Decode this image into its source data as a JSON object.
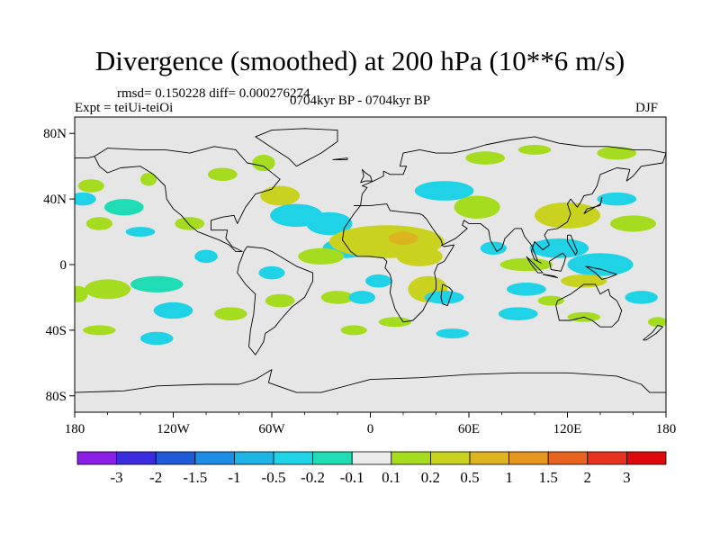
{
  "title": "Divergence (smoothed) at 200 hPa (10**6 m/s)",
  "stats": "rmsd= 0.150228 diff= 0.000276274",
  "experiment": "Expt = teiUi-teiOi",
  "period": "0704kyr BP - 0704kyr BP",
  "season": "DJF",
  "map": {
    "background": "#e6e6e6",
    "lon_range": [
      -180,
      180
    ],
    "lat_range": [
      -90,
      90
    ],
    "lat_ticks": [
      {
        "value": 80,
        "label": "80N"
      },
      {
        "value": 40,
        "label": "40N"
      },
      {
        "value": 0,
        "label": "0"
      },
      {
        "value": -40,
        "label": "40S"
      },
      {
        "value": -80,
        "label": "80S"
      }
    ],
    "lon_ticks": [
      {
        "value": -180,
        "label": "180"
      },
      {
        "value": -120,
        "label": "120W"
      },
      {
        "value": -60,
        "label": "60W"
      },
      {
        "value": 0,
        "label": "0"
      },
      {
        "value": 60,
        "label": "60E"
      },
      {
        "value": 120,
        "label": "120E"
      },
      {
        "value": 180,
        "label": "180"
      }
    ]
  },
  "colorbar": {
    "colors": [
      "#8c1fe6",
      "#3c2ce0",
      "#1f5ad9",
      "#1f8ce6",
      "#1fb4e6",
      "#1fd2e6",
      "#1fdcb4",
      "#ebebeb",
      "#a6dc1f",
      "#c8d21f",
      "#dcb41f",
      "#e6961f",
      "#e6641f",
      "#e6321f",
      "#dc0a0a"
    ],
    "labels": [
      "-3",
      "-2",
      "-1.5",
      "-1",
      "-0.5",
      "-0.2",
      "-0.1",
      "0.1",
      "0.2",
      "0.5",
      "1",
      "1.5",
      "2",
      "3"
    ]
  },
  "fields": [
    {
      "cls": 6,
      "lon": -150,
      "lat": 35,
      "rx": 12,
      "ry": 5
    },
    {
      "cls": 8,
      "lon": -165,
      "lat": 25,
      "rx": 8,
      "ry": 4
    },
    {
      "cls": 8,
      "lon": -170,
      "lat": 48,
      "rx": 8,
      "ry": 4
    },
    {
      "cls": 5,
      "lon": -175,
      "lat": 40,
      "rx": 8,
      "ry": 4
    },
    {
      "cls": 8,
      "lon": -160,
      "lat": -15,
      "rx": 14,
      "ry": 6
    },
    {
      "cls": 6,
      "lon": -130,
      "lat": -12,
      "rx": 16,
      "ry": 5
    },
    {
      "cls": 8,
      "lon": -178,
      "lat": -18,
      "rx": 6,
      "ry": 5
    },
    {
      "cls": 5,
      "lon": -140,
      "lat": 20,
      "rx": 9,
      "ry": 3
    },
    {
      "cls": 8,
      "lon": -110,
      "lat": 25,
      "rx": 9,
      "ry": 4
    },
    {
      "cls": 8,
      "lon": -135,
      "lat": 52,
      "rx": 5,
      "ry": 4
    },
    {
      "cls": 5,
      "lon": -100,
      "lat": 5,
      "rx": 7,
      "ry": 4
    },
    {
      "cls": 5,
      "lon": -120,
      "lat": -28,
      "rx": 12,
      "ry": 5
    },
    {
      "cls": 8,
      "lon": -85,
      "lat": -30,
      "rx": 10,
      "ry": 4
    },
    {
      "cls": 5,
      "lon": -60,
      "lat": -5,
      "rx": 8,
      "ry": 4
    },
    {
      "cls": 8,
      "lon": -90,
      "lat": 55,
      "rx": 9,
      "ry": 4
    },
    {
      "cls": 9,
      "lon": -55,
      "lat": 42,
      "rx": 12,
      "ry": 6
    },
    {
      "cls": 5,
      "lon": -45,
      "lat": 30,
      "rx": 16,
      "ry": 7
    },
    {
      "cls": 8,
      "lon": -65,
      "lat": 62,
      "rx": 7,
      "ry": 5
    },
    {
      "cls": 5,
      "lon": -25,
      "lat": 25,
      "rx": 14,
      "ry": 7
    },
    {
      "cls": 5,
      "lon": -15,
      "lat": 10,
      "rx": 14,
      "ry": 6
    },
    {
      "cls": 8,
      "lon": -30,
      "lat": 5,
      "rx": 14,
      "ry": 5
    },
    {
      "cls": 9,
      "lon": 10,
      "lat": 14,
      "rx": 35,
      "ry": 10
    },
    {
      "cls": 10,
      "lon": 20,
      "lat": 16,
      "rx": 9,
      "ry": 4
    },
    {
      "cls": 8,
      "lon": -20,
      "lat": -20,
      "rx": 10,
      "ry": 4
    },
    {
      "cls": 5,
      "lon": -5,
      "lat": -20,
      "rx": 8,
      "ry": 4
    },
    {
      "cls": 8,
      "lon": -55,
      "lat": -22,
      "rx": 9,
      "ry": 4
    },
    {
      "cls": 5,
      "lon": 5,
      "lat": -10,
      "rx": 8,
      "ry": 4
    },
    {
      "cls": 9,
      "lon": 30,
      "lat": 5,
      "rx": 14,
      "ry": 6
    },
    {
      "cls": 9,
      "lon": 35,
      "lat": -15,
      "rx": 12,
      "ry": 8
    },
    {
      "cls": 5,
      "lon": 45,
      "lat": -20,
      "rx": 12,
      "ry": 4
    },
    {
      "cls": 8,
      "lon": 15,
      "lat": -35,
      "rx": 10,
      "ry": 3
    },
    {
      "cls": 5,
      "lon": 45,
      "lat": 45,
      "rx": 18,
      "ry": 6
    },
    {
      "cls": 8,
      "lon": 70,
      "lat": 65,
      "rx": 12,
      "ry": 4
    },
    {
      "cls": 8,
      "lon": 100,
      "lat": 70,
      "rx": 10,
      "ry": 3
    },
    {
      "cls": 8,
      "lon": 150,
      "lat": 68,
      "rx": 12,
      "ry": 4
    },
    {
      "cls": 8,
      "lon": 65,
      "lat": 35,
      "rx": 14,
      "ry": 7
    },
    {
      "cls": 5,
      "lon": 75,
      "lat": 10,
      "rx": 8,
      "ry": 4
    },
    {
      "cls": 9,
      "lon": 120,
      "lat": 30,
      "rx": 20,
      "ry": 8
    },
    {
      "cls": 8,
      "lon": 160,
      "lat": 25,
      "rx": 14,
      "ry": 5
    },
    {
      "cls": 5,
      "lon": 150,
      "lat": 40,
      "rx": 12,
      "ry": 4
    },
    {
      "cls": 5,
      "lon": 115,
      "lat": 10,
      "rx": 18,
      "ry": 6
    },
    {
      "cls": 5,
      "lon": 140,
      "lat": 0,
      "rx": 20,
      "ry": 7
    },
    {
      "cls": 8,
      "lon": 95,
      "lat": 0,
      "rx": 16,
      "ry": 4
    },
    {
      "cls": 9,
      "lon": 130,
      "lat": -10,
      "rx": 14,
      "ry": 4
    },
    {
      "cls": 5,
      "lon": 95,
      "lat": -15,
      "rx": 12,
      "ry": 4
    },
    {
      "cls": 8,
      "lon": 110,
      "lat": -22,
      "rx": 8,
      "ry": 3
    },
    {
      "cls": 5,
      "lon": 90,
      "lat": -30,
      "rx": 12,
      "ry": 4
    },
    {
      "cls": 8,
      "lon": 130,
      "lat": -32,
      "rx": 10,
      "ry": 3
    },
    {
      "cls": 5,
      "lon": 165,
      "lat": -20,
      "rx": 10,
      "ry": 4
    },
    {
      "cls": 8,
      "lon": 175,
      "lat": -35,
      "rx": 6,
      "ry": 3
    },
    {
      "cls": 5,
      "lon": -130,
      "lat": -45,
      "rx": 10,
      "ry": 4
    },
    {
      "cls": 8,
      "lon": -165,
      "lat": -40,
      "rx": 10,
      "ry": 3
    },
    {
      "cls": 5,
      "lon": 50,
      "lat": -42,
      "rx": 10,
      "ry": 3
    },
    {
      "cls": 8,
      "lon": -10,
      "lat": -40,
      "rx": 8,
      "ry": 3
    }
  ],
  "coastlines": [
    [
      [
        -168,
        66
      ],
      [
        -160,
        71
      ],
      [
        -140,
        70
      ],
      [
        -125,
        70
      ],
      [
        -110,
        68
      ],
      [
        -95,
        72
      ],
      [
        -82,
        70
      ],
      [
        -75,
        62
      ],
      [
        -65,
        60
      ],
      [
        -55,
        52
      ],
      [
        -60,
        46
      ],
      [
        -70,
        43
      ],
      [
        -76,
        35
      ],
      [
        -80,
        27
      ],
      [
        -81,
        25
      ],
      [
        -83,
        30
      ],
      [
        -90,
        29
      ],
      [
        -97,
        27
      ],
      [
        -97,
        21
      ],
      [
        -90,
        21
      ],
      [
        -87,
        21
      ],
      [
        -88,
        16
      ],
      [
        -84,
        11
      ],
      [
        -80,
        9
      ],
      [
        -78,
        8
      ],
      [
        -82,
        8
      ],
      [
        -86,
        12
      ],
      [
        -92,
        15
      ],
      [
        -105,
        20
      ],
      [
        -110,
        24
      ],
      [
        -115,
        30
      ],
      [
        -120,
        34
      ],
      [
        -124,
        40
      ],
      [
        -125,
        48
      ],
      [
        -132,
        55
      ],
      [
        -140,
        60
      ],
      [
        -152,
        59
      ],
      [
        -160,
        56
      ],
      [
        -165,
        60
      ],
      [
        -168,
        66
      ]
    ],
    [
      [
        -75,
        11
      ],
      [
        -65,
        10
      ],
      [
        -60,
        8
      ],
      [
        -50,
        2
      ],
      [
        -45,
        -1
      ],
      [
        -35,
        -5
      ],
      [
        -35,
        -10
      ],
      [
        -40,
        -20
      ],
      [
        -48,
        -26
      ],
      [
        -55,
        -34
      ],
      [
        -58,
        -38
      ],
      [
        -64,
        -42
      ],
      [
        -65,
        -47
      ],
      [
        -68,
        -52
      ],
      [
        -70,
        -55
      ],
      [
        -74,
        -50
      ],
      [
        -73,
        -40
      ],
      [
        -71,
        -30
      ],
      [
        -70,
        -18
      ],
      [
        -76,
        -12
      ],
      [
        -81,
        -5
      ],
      [
        -80,
        0
      ],
      [
        -78,
        5
      ],
      [
        -77,
        8
      ],
      [
        -75,
        11
      ]
    ],
    [
      [
        -45,
        60
      ],
      [
        -30,
        68
      ],
      [
        -20,
        75
      ],
      [
        -20,
        82
      ],
      [
        -40,
        83
      ],
      [
        -60,
        82
      ],
      [
        -70,
        78
      ],
      [
        -58,
        70
      ],
      [
        -50,
        65
      ],
      [
        -45,
        60
      ]
    ],
    [
      [
        -10,
        36
      ],
      [
        -6,
        36
      ],
      [
        -5,
        43
      ],
      [
        -2,
        47
      ],
      [
        -5,
        48
      ],
      [
        2,
        51
      ],
      [
        8,
        54
      ],
      [
        8,
        57
      ],
      [
        12,
        55
      ],
      [
        20,
        55
      ],
      [
        22,
        60
      ],
      [
        18,
        60
      ],
      [
        20,
        68
      ],
      [
        30,
        70
      ],
      [
        40,
        68
      ],
      [
        50,
        68
      ],
      [
        60,
        70
      ],
      [
        70,
        73
      ],
      [
        85,
        76
      ],
      [
        100,
        78
      ],
      [
        115,
        74
      ],
      [
        130,
        72
      ],
      [
        145,
        72
      ],
      [
        160,
        70
      ],
      [
        170,
        70
      ],
      [
        180,
        68
      ]
    ],
    [
      [
        -180,
        65
      ],
      [
        -172,
        65
      ],
      [
        -168,
        66
      ]
    ],
    [
      [
        180,
        68
      ],
      [
        178,
        62
      ],
      [
        165,
        60
      ],
      [
        160,
        54
      ],
      [
        156,
        51
      ],
      [
        158,
        58
      ],
      [
        150,
        59
      ],
      [
        140,
        55
      ],
      [
        138,
        48
      ],
      [
        135,
        43
      ],
      [
        130,
        42
      ],
      [
        128,
        38
      ],
      [
        126,
        35
      ],
      [
        122,
        40
      ],
      [
        120,
        37
      ],
      [
        122,
        31
      ],
      [
        120,
        26
      ],
      [
        114,
        22
      ],
      [
        108,
        21
      ],
      [
        106,
        18
      ],
      [
        109,
        12
      ],
      [
        105,
        9
      ],
      [
        103,
        11
      ],
      [
        100,
        14
      ],
      [
        98,
        8
      ],
      [
        100,
        3
      ],
      [
        104,
        1
      ],
      [
        102,
        2
      ],
      [
        98,
        12
      ],
      [
        94,
        17
      ],
      [
        92,
        22
      ],
      [
        88,
        22
      ],
      [
        82,
        16
      ],
      [
        80,
        10
      ],
      [
        77,
        8
      ],
      [
        73,
        15
      ],
      [
        72,
        21
      ],
      [
        67,
        25
      ],
      [
        60,
        25
      ],
      [
        57,
        27
      ],
      [
        56,
        24
      ],
      [
        59,
        22
      ],
      [
        52,
        16
      ],
      [
        44,
        12
      ],
      [
        43,
        15
      ],
      [
        38,
        22
      ],
      [
        34,
        28
      ],
      [
        32,
        30
      ],
      [
        30,
        31
      ],
      [
        20,
        32
      ],
      [
        12,
        33
      ],
      [
        10,
        37
      ],
      [
        0,
        36
      ],
      [
        -10,
        36
      ]
    ],
    [
      [
        -6,
        36
      ],
      [
        -10,
        31
      ],
      [
        -16,
        22
      ],
      [
        -17,
        15
      ],
      [
        -12,
        8
      ],
      [
        -8,
        5
      ],
      [
        0,
        5
      ],
      [
        8,
        4
      ],
      [
        10,
        2
      ],
      [
        9,
        -2
      ],
      [
        12,
        -6
      ],
      [
        13,
        -10
      ],
      [
        12,
        -17
      ],
      [
        15,
        -27
      ],
      [
        18,
        -32
      ],
      [
        20,
        -35
      ],
      [
        26,
        -34
      ],
      [
        32,
        -28
      ],
      [
        35,
        -22
      ],
      [
        40,
        -15
      ],
      [
        40,
        -10
      ],
      [
        39,
        -5
      ],
      [
        41,
        0
      ],
      [
        45,
        2
      ],
      [
        50,
        10
      ],
      [
        51,
        12
      ],
      [
        45,
        11
      ],
      [
        43,
        12
      ]
    ],
    [
      [
        44,
        -12
      ],
      [
        48,
        -14
      ],
      [
        50,
        -16
      ],
      [
        47,
        -25
      ],
      [
        44,
        -24
      ],
      [
        43,
        -20
      ],
      [
        44,
        -12
      ]
    ],
    [
      [
        114,
        -22
      ],
      [
        122,
        -18
      ],
      [
        130,
        -12
      ],
      [
        137,
        -12
      ],
      [
        140,
        -18
      ],
      [
        145,
        -15
      ],
      [
        146,
        -19
      ],
      [
        150,
        -22
      ],
      [
        153,
        -28
      ],
      [
        151,
        -34
      ],
      [
        147,
        -38
      ],
      [
        140,
        -38
      ],
      [
        135,
        -34
      ],
      [
        130,
        -32
      ],
      [
        122,
        -34
      ],
      [
        115,
        -34
      ],
      [
        113,
        -25
      ],
      [
        114,
        -22
      ]
    ],
    [
      [
        95,
        5
      ],
      [
        100,
        0
      ],
      [
        105,
        -5
      ],
      [
        102,
        -5
      ],
      [
        98,
        0
      ],
      [
        95,
        5
      ]
    ],
    [
      [
        105,
        -6
      ],
      [
        114,
        -8
      ],
      [
        112,
        -7
      ],
      [
        106,
        -6
      ],
      [
        105,
        -6
      ]
    ],
    [
      [
        109,
        2
      ],
      [
        117,
        7
      ],
      [
        119,
        5
      ],
      [
        118,
        1
      ],
      [
        116,
        -4
      ],
      [
        110,
        -3
      ],
      [
        109,
        2
      ]
    ],
    [
      [
        131,
        -1
      ],
      [
        141,
        -3
      ],
      [
        150,
        -6
      ],
      [
        145,
        -8
      ],
      [
        141,
        -9
      ],
      [
        137,
        -5
      ],
      [
        131,
        -1
      ]
    ],
    [
      [
        120,
        18
      ],
      [
        122,
        18
      ],
      [
        126,
        8
      ],
      [
        125,
        6
      ],
      [
        120,
        14
      ],
      [
        120,
        18
      ]
    ],
    [
      [
        130,
        31
      ],
      [
        132,
        34
      ],
      [
        136,
        35
      ],
      [
        140,
        36
      ],
      [
        141,
        41
      ],
      [
        140,
        37
      ],
      [
        135,
        34
      ],
      [
        130,
        31
      ]
    ],
    [
      [
        166,
        -46
      ],
      [
        172,
        -41
      ],
      [
        175,
        -37
      ],
      [
        178,
        -38
      ],
      [
        174,
        -42
      ],
      [
        168,
        -46
      ],
      [
        166,
        -46
      ]
    ],
    [
      [
        -6,
        50
      ],
      [
        -3,
        51
      ],
      [
        1,
        51
      ],
      [
        0,
        54
      ],
      [
        -3,
        56
      ],
      [
        -5,
        58
      ],
      [
        -4,
        54
      ],
      [
        -6,
        50
      ]
    ],
    [
      [
        -23,
        64
      ],
      [
        -14,
        65
      ],
      [
        -14,
        64
      ],
      [
        -22,
        64
      ],
      [
        -23,
        64
      ]
    ],
    [
      [
        -180,
        -78
      ],
      [
        -150,
        -77
      ],
      [
        -130,
        -74
      ],
      [
        -100,
        -73
      ],
      [
        -80,
        -73
      ],
      [
        -70,
        -70
      ],
      [
        -60,
        -64
      ],
      [
        -62,
        -72
      ],
      [
        -45,
        -78
      ],
      [
        -30,
        -78
      ],
      [
        0,
        -70
      ],
      [
        30,
        -69
      ],
      [
        60,
        -67
      ],
      [
        90,
        -66
      ],
      [
        120,
        -66
      ],
      [
        150,
        -68
      ],
      [
        165,
        -73
      ],
      [
        170,
        -78
      ],
      [
        180,
        -78
      ]
    ]
  ]
}
